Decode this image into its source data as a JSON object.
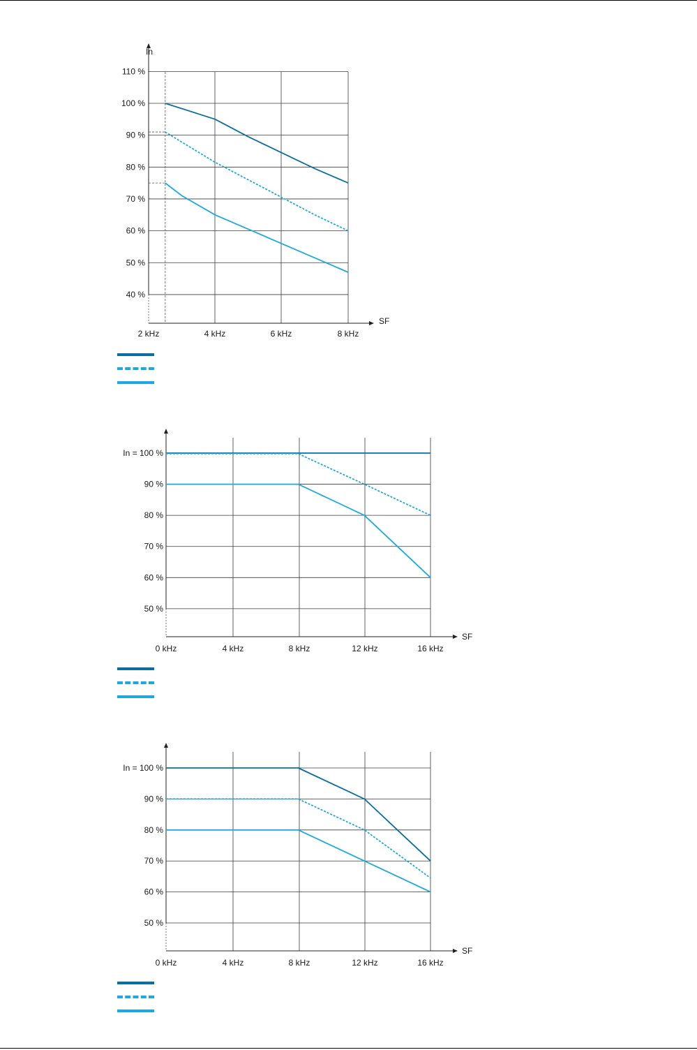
{
  "colors": {
    "dark_solid": "#0b6ea0",
    "light_dashed": "#1ea8df",
    "light_solid": "#1ea8df",
    "grid": "#3a3a3a",
    "guide": "#555555"
  },
  "chart_data": [
    {
      "type": "line",
      "title": "",
      "ylabel": "In",
      "xlabel": "SF",
      "x_ticks": [
        "2 kHz",
        "4 kHz",
        "6 kHz",
        "8 kHz"
      ],
      "y_ticks": [
        "40 %",
        "50 %",
        "60 %",
        "70 %",
        "80 %",
        "90 %",
        "100 %",
        "110 %"
      ],
      "xlim": [
        2,
        8
      ],
      "ylim": [
        31,
        110
      ],
      "grid": true,
      "series": [
        {
          "style": "dark-solid",
          "x": [
            2.5,
            4,
            5,
            6,
            7,
            8
          ],
          "y": [
            100,
            95,
            89.5,
            84.5,
            79.5,
            75
          ]
        },
        {
          "style": "light-dashed",
          "x": [
            2.5,
            4,
            5,
            6,
            7,
            8
          ],
          "y": [
            91,
            81.5,
            76,
            70.5,
            65,
            60
          ]
        },
        {
          "style": "light-solid",
          "x": [
            2.5,
            3,
            4,
            5,
            6,
            7,
            8
          ],
          "y": [
            75,
            71,
            65,
            60.5,
            56,
            51.5,
            47
          ]
        }
      ],
      "guides": [
        {
          "kind": "v",
          "x": 2.5
        },
        {
          "kind": "v-axis-left"
        },
        {
          "kind": "h",
          "y": 91,
          "x_from": 2,
          "x_to": 2.5
        },
        {
          "kind": "h",
          "y": 75,
          "x_from": 2,
          "x_to": 2.5
        }
      ],
      "legend": [
        "",
        "",
        ""
      ]
    },
    {
      "type": "line",
      "title": "",
      "ylabel": "",
      "xlabel": "SF",
      "x_ticks": [
        "0 kHz",
        "4 kHz",
        "8 kHz",
        "12 kHz",
        "16 kHz"
      ],
      "y_ticks": [
        "50 %",
        "60 %",
        "70 %",
        "80 %",
        "90 %",
        "In = 100 %"
      ],
      "xlim": [
        0,
        16
      ],
      "ylim": [
        41,
        100
      ],
      "grid": true,
      "series": [
        {
          "style": "dark-solid",
          "x": [
            0,
            8,
            16
          ],
          "y": [
            100,
            100,
            100
          ]
        },
        {
          "style": "light-dashed",
          "x": [
            0,
            8,
            12,
            16
          ],
          "y": [
            99.8,
            99.8,
            90,
            80
          ]
        },
        {
          "style": "light-solid",
          "x": [
            0,
            8,
            12,
            14,
            16
          ],
          "y": [
            90,
            90,
            80,
            70,
            60
          ]
        }
      ],
      "guides": [
        {
          "kind": "v-axis-left"
        }
      ],
      "legend": [
        "",
        "",
        ""
      ]
    },
    {
      "type": "line",
      "title": "",
      "ylabel": "",
      "xlabel": "SF",
      "x_ticks": [
        "0 kHz",
        "4 kHz",
        "8 kHz",
        "12 kHz",
        "16 kHz"
      ],
      "y_ticks": [
        "50 %",
        "60 %",
        "70 %",
        "80 %",
        "90 %",
        "In = 100 %"
      ],
      "xlim": [
        0,
        16
      ],
      "ylim": [
        41,
        100
      ],
      "grid": true,
      "series": [
        {
          "style": "dark-solid",
          "x": [
            0,
            8,
            12,
            14,
            16
          ],
          "y": [
            100,
            100,
            90,
            80,
            70
          ]
        },
        {
          "style": "light-dashed",
          "x": [
            0,
            8,
            12,
            16
          ],
          "y": [
            90,
            90,
            80,
            64.5
          ]
        },
        {
          "style": "light-solid",
          "x": [
            0,
            8,
            12,
            16
          ],
          "y": [
            80,
            80,
            70,
            60
          ]
        }
      ],
      "guides": [
        {
          "kind": "v-axis-left"
        }
      ],
      "legend": [
        "",
        "",
        ""
      ]
    }
  ]
}
